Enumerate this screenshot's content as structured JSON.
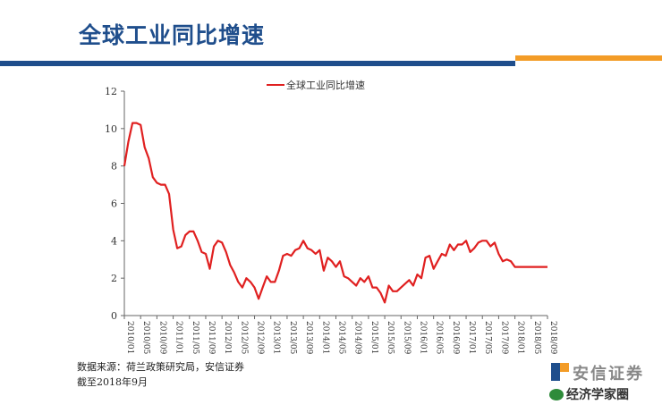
{
  "slide": {
    "title": "全球工业同比增速",
    "colors": {
      "brand_blue": "#1f4e8c",
      "brand_orange": "#f39c27",
      "line": "#e02020"
    }
  },
  "chart_data": {
    "type": "line",
    "title": "",
    "xlabel": "",
    "ylabel": "",
    "ylim": [
      0,
      12
    ],
    "yticks": [
      0,
      2,
      4,
      6,
      8,
      10,
      12
    ],
    "grid": false,
    "legend_position": "top-center",
    "x": [
      "2010-01",
      "2010-02",
      "2010-03",
      "2010-04",
      "2010-05",
      "2010-06",
      "2010-07",
      "2010-08",
      "2010-09",
      "2010-10",
      "2010-11",
      "2010-12",
      "2011-01",
      "2011-02",
      "2011-03",
      "2011-04",
      "2011-05",
      "2011-06",
      "2011-07",
      "2011-08",
      "2011-09",
      "2011-10",
      "2011-11",
      "2011-12",
      "2012-01",
      "2012-02",
      "2012-03",
      "2012-04",
      "2012-05",
      "2012-06",
      "2012-07",
      "2012-08",
      "2012-09",
      "2012-10",
      "2012-11",
      "2012-12",
      "2013-01",
      "2013-02",
      "2013-03",
      "2013-04",
      "2013-05",
      "2013-06",
      "2013-07",
      "2013-08",
      "2013-09",
      "2013-10",
      "2013-11",
      "2013-12",
      "2014-01",
      "2014-02",
      "2014-03",
      "2014-04",
      "2014-05",
      "2014-06",
      "2014-07",
      "2014-08",
      "2014-09",
      "2014-10",
      "2014-11",
      "2014-12",
      "2015-01",
      "2015-02",
      "2015-03",
      "2015-04",
      "2015-05",
      "2015-06",
      "2015-07",
      "2015-08",
      "2015-09",
      "2015-10",
      "2015-11",
      "2015-12",
      "2016-01",
      "2016-02",
      "2016-03",
      "2016-04",
      "2016-05",
      "2016-06",
      "2016-07",
      "2016-08",
      "2016-09",
      "2016-10",
      "2016-11",
      "2016-12",
      "2017-01",
      "2017-02",
      "2017-03",
      "2017-04",
      "2017-05",
      "2017-06",
      "2017-07",
      "2017-08",
      "2017-09",
      "2017-10",
      "2017-11",
      "2017-12",
      "2018-01",
      "2018-02",
      "2018-03",
      "2018-04",
      "2018-05",
      "2018-06",
      "2018-07",
      "2018-08",
      "2018-09"
    ],
    "xtick_labels": [
      "2010/01",
      "2010/05",
      "2010/09",
      "2011/01",
      "2011/05",
      "2011/09",
      "2012/01",
      "2012/05",
      "2012/09",
      "2013/01",
      "2013/05",
      "2013/09",
      "2014/01",
      "2014/05",
      "2014/09",
      "2015/01",
      "2015/05",
      "2015/09",
      "2016/01",
      "2016/05",
      "2016/09",
      "2017/01",
      "2017/05",
      "2017/09",
      "2018/01",
      "2018/05",
      "2018/09"
    ],
    "series": [
      {
        "name": "全球工业同比增速",
        "color": "#e02020",
        "values": [
          8.0,
          9.3,
          10.3,
          10.3,
          10.2,
          9.0,
          8.4,
          7.4,
          7.1,
          7.0,
          7.0,
          6.5,
          4.6,
          3.6,
          3.7,
          4.3,
          4.5,
          4.5,
          4.0,
          3.4,
          3.3,
          2.5,
          3.7,
          4.0,
          3.9,
          3.4,
          2.7,
          2.3,
          1.8,
          1.5,
          2.0,
          1.8,
          1.5,
          0.9,
          1.5,
          2.1,
          1.8,
          1.8,
          2.4,
          3.2,
          3.3,
          3.2,
          3.5,
          3.6,
          4.0,
          3.6,
          3.5,
          3.3,
          3.5,
          2.4,
          3.1,
          2.9,
          2.6,
          2.9,
          2.1,
          2.0,
          1.8,
          1.6,
          2.0,
          1.8,
          2.1,
          1.5,
          1.5,
          1.2,
          0.7,
          1.6,
          1.3,
          1.3,
          1.5,
          1.7,
          1.9,
          1.6,
          2.2,
          2.0,
          3.1,
          3.2,
          2.5,
          2.9,
          3.3,
          3.2,
          3.8,
          3.5,
          3.8,
          3.8,
          4.0,
          3.4,
          3.6,
          3.9,
          4.0,
          4.0,
          3.7,
          3.9,
          3.3,
          2.9,
          3.0,
          2.9,
          2.6,
          2.6,
          2.6,
          2.6,
          2.6,
          2.6,
          2.6,
          2.6,
          2.6
        ]
      }
    ]
  },
  "source": {
    "line1": "数据来源：荷兰政策研究局，安信证券",
    "line2": "截至2018年9月"
  },
  "logo": {
    "text": "安信证券"
  },
  "watermark": {
    "text": "经济学家圈"
  }
}
